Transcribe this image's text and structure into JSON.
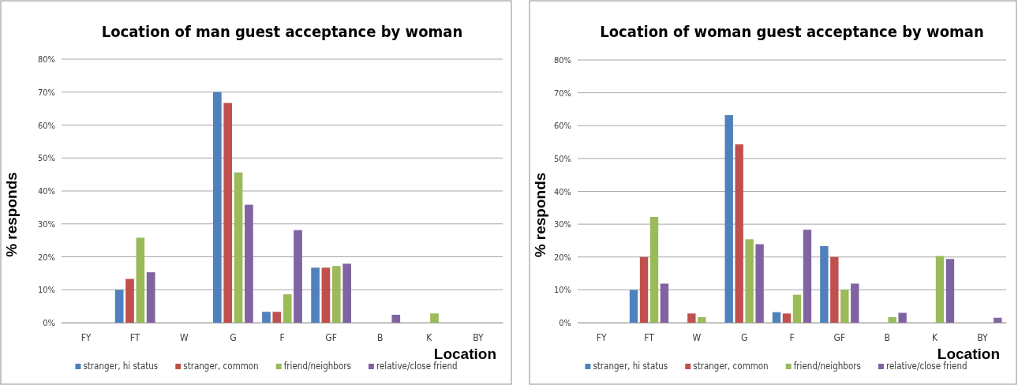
{
  "chart_data": [
    {
      "type": "bar",
      "title": "Location of man guest acceptance by woman",
      "xlabel": "Location",
      "ylabel": "% responds",
      "categories": [
        "FY",
        "FT",
        "W",
        "G",
        "F",
        "GF",
        "B",
        "K",
        "BY"
      ],
      "ylim": [
        0,
        80
      ],
      "yticks": [
        {
          "value": 0,
          "label": "0%"
        },
        {
          "value": 10,
          "label": "10%"
        },
        {
          "value": 20,
          "label": "20%"
        },
        {
          "value": 30,
          "label": "30%"
        },
        {
          "value": 40,
          "label": "40%"
        },
        {
          "value": 50,
          "label": "50%"
        },
        {
          "value": 60,
          "label": "60%"
        },
        {
          "value": 70,
          "label": "70%"
        },
        {
          "value": 80,
          "label": "80%"
        }
      ],
      "grid": "y",
      "legend": "bottom",
      "series": [
        {
          "name": "stranger, hi status",
          "color": "#4f81bd",
          "values": [
            0,
            10,
            0,
            70,
            3.3,
            16.7,
            0,
            0,
            0
          ]
        },
        {
          "name": "stranger, common",
          "color": "#c0504d",
          "values": [
            0,
            13.3,
            0,
            66.7,
            3.3,
            16.7,
            0,
            0,
            0
          ]
        },
        {
          "name": "friend/neighbors",
          "color": "#9bbb59",
          "values": [
            0,
            25.8,
            0,
            45.6,
            8.6,
            17.2,
            0,
            2.8,
            0
          ]
        },
        {
          "name": "relative/close friend",
          "color": "#8064a2",
          "values": [
            0,
            15.3,
            0,
            35.8,
            28.1,
            17.9,
            2.4,
            0,
            0
          ]
        }
      ]
    },
    {
      "type": "bar",
      "title": "Location of woman guest acceptance by woman",
      "xlabel": "Location",
      "ylabel": "% responds",
      "categories": [
        "FY",
        "FT",
        "W",
        "G",
        "F",
        "GF",
        "B",
        "K",
        "BY"
      ],
      "ylim": [
        0,
        80
      ],
      "yticks": [
        {
          "value": 0,
          "label": "0%"
        },
        {
          "value": 10,
          "label": "10%"
        },
        {
          "value": 20,
          "label": "20%"
        },
        {
          "value": 30,
          "label": "30%"
        },
        {
          "value": 40,
          "label": "40%"
        },
        {
          "value": 50,
          "label": "50%"
        },
        {
          "value": 60,
          "label": "60%"
        },
        {
          "value": 70,
          "label": "70%"
        },
        {
          "value": 80,
          "label": "80%"
        }
      ],
      "grid": "y",
      "legend": "bottom",
      "series": [
        {
          "name": "stranger, hi status",
          "color": "#4f81bd",
          "values": [
            0,
            10,
            0,
            63.2,
            3.2,
            23.3,
            0,
            0,
            0
          ]
        },
        {
          "name": "stranger, common",
          "color": "#c0504d",
          "values": [
            0,
            20,
            2.8,
            54.3,
            2.8,
            20,
            0,
            0,
            0
          ]
        },
        {
          "name": "friend/neighbors",
          "color": "#9bbb59",
          "values": [
            0,
            32.2,
            1.7,
            25.4,
            8.5,
            10,
            1.7,
            20.3,
            0
          ]
        },
        {
          "name": "relative/close friend",
          "color": "#8064a2",
          "values": [
            0,
            11.9,
            0,
            23.9,
            28.3,
            11.9,
            3.0,
            19.4,
            1.5
          ]
        }
      ]
    }
  ]
}
